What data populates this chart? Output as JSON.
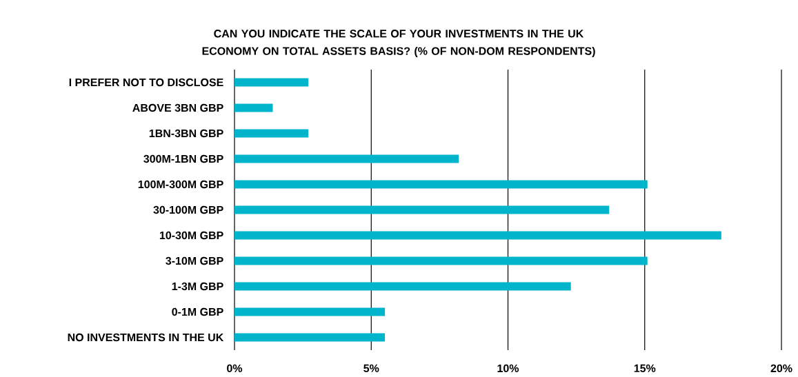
{
  "chart_data": {
    "type": "bar",
    "orientation": "horizontal",
    "title": "CAN YOU INDICATE THE SCALE OF YOUR INVESTMENTS IN THE UK ECONOMY ON TOTAL ASSETS BASIS? (% OF NON-DOM RESPONDENTS)",
    "categories": [
      "I PREFER NOT TO DISCLOSE",
      "ABOVE 3BN GBP",
      "1BN-3BN GBP",
      "300M-1BN GBP",
      "100M-300M GBP",
      "30-100M GBP",
      "10-30M GBP",
      "3-10M GBP",
      "1-3M GBP",
      "0-1M GBP",
      "NO INVESTMENTS IN THE UK"
    ],
    "values": [
      2.7,
      1.4,
      2.7,
      8.2,
      15.1,
      13.7,
      17.8,
      15.1,
      12.3,
      5.5,
      5.5
    ],
    "color": "#00b4cc",
    "xlim": [
      0,
      20
    ],
    "xticks": [
      {
        "value": 0,
        "label": "0%"
      },
      {
        "value": 5,
        "label": "5%"
      },
      {
        "value": 10,
        "label": "10%"
      },
      {
        "value": 15,
        "label": "15%"
      },
      {
        "value": 20,
        "label": "20%"
      }
    ],
    "grid": "x"
  }
}
